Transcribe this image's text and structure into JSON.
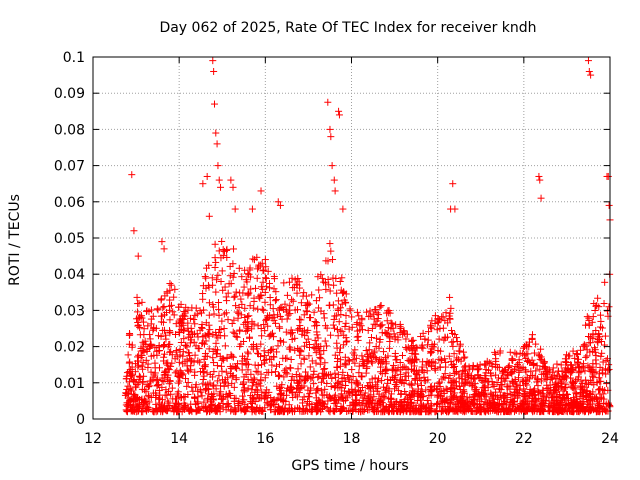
{
  "chart_data": {
    "type": "scatter",
    "title": "Day 062 of 2025, Rate Of TEC Index for receiver kndh",
    "xlabel": "GPS time / hours",
    "ylabel": "ROTI / TECUs",
    "xlim": [
      12,
      24
    ],
    "ylim": [
      0,
      0.1
    ],
    "x_ticks": [
      12,
      14,
      16,
      18,
      20,
      22,
      24
    ],
    "x_tick_labels": [
      "12",
      "14",
      "16",
      "18",
      "20",
      "22",
      "24"
    ],
    "y_ticks": [
      0,
      0.01,
      0.02,
      0.03,
      0.04,
      0.05,
      0.06,
      0.07,
      0.08,
      0.09,
      0.1
    ],
    "y_tick_labels": [
      "0",
      "0.01",
      "0.02",
      "0.03",
      "0.04",
      "0.05",
      "0.06",
      "0.07",
      "0.08",
      "0.09",
      "0.1"
    ],
    "grid": true,
    "marker": "+",
    "marker_color": "#ff0000",
    "series": [
      {
        "name": "ROTI",
        "x_range": [
          12.75,
          24.0
        ],
        "envelope": [
          [
            12.75,
            0.02
          ],
          [
            13.0,
            0.035
          ],
          [
            13.25,
            0.03
          ],
          [
            13.5,
            0.032
          ],
          [
            13.75,
            0.04
          ],
          [
            14.0,
            0.035
          ],
          [
            14.25,
            0.03
          ],
          [
            14.5,
            0.035
          ],
          [
            14.75,
            0.048
          ],
          [
            15.0,
            0.05
          ],
          [
            15.25,
            0.048
          ],
          [
            15.5,
            0.042
          ],
          [
            15.75,
            0.045
          ],
          [
            16.0,
            0.045
          ],
          [
            16.25,
            0.042
          ],
          [
            16.5,
            0.038
          ],
          [
            16.75,
            0.04
          ],
          [
            17.0,
            0.035
          ],
          [
            17.25,
            0.04
          ],
          [
            17.5,
            0.05
          ],
          [
            17.75,
            0.04
          ],
          [
            18.0,
            0.032
          ],
          [
            18.25,
            0.03
          ],
          [
            18.5,
            0.03
          ],
          [
            18.75,
            0.032
          ],
          [
            19.0,
            0.028
          ],
          [
            19.25,
            0.025
          ],
          [
            19.5,
            0.022
          ],
          [
            19.75,
            0.025
          ],
          [
            20.0,
            0.03
          ],
          [
            20.25,
            0.035
          ],
          [
            20.5,
            0.022
          ],
          [
            20.75,
            0.015
          ],
          [
            21.0,
            0.015
          ],
          [
            21.25,
            0.018
          ],
          [
            21.5,
            0.02
          ],
          [
            21.75,
            0.018
          ],
          [
            22.0,
            0.02
          ],
          [
            22.25,
            0.025
          ],
          [
            22.5,
            0.015
          ],
          [
            22.75,
            0.015
          ],
          [
            23.0,
            0.018
          ],
          [
            23.25,
            0.02
          ],
          [
            23.5,
            0.03
          ],
          [
            23.75,
            0.035
          ],
          [
            24.0,
            0.045
          ]
        ],
        "outliers": [
          [
            12.9,
            0.0675
          ],
          [
            12.95,
            0.052
          ],
          [
            13.05,
            0.045
          ],
          [
            13.6,
            0.049
          ],
          [
            13.65,
            0.047
          ],
          [
            14.55,
            0.065
          ],
          [
            14.65,
            0.067
          ],
          [
            14.7,
            0.056
          ],
          [
            14.78,
            0.099
          ],
          [
            14.8,
            0.096
          ],
          [
            14.82,
            0.087
          ],
          [
            14.85,
            0.079
          ],
          [
            14.88,
            0.076
          ],
          [
            14.9,
            0.07
          ],
          [
            14.93,
            0.066
          ],
          [
            14.96,
            0.064
          ],
          [
            15.2,
            0.066
          ],
          [
            15.25,
            0.064
          ],
          [
            15.3,
            0.058
          ],
          [
            15.7,
            0.058
          ],
          [
            15.9,
            0.063
          ],
          [
            16.3,
            0.06
          ],
          [
            16.35,
            0.059
          ],
          [
            17.45,
            0.0875
          ],
          [
            17.5,
            0.08
          ],
          [
            17.52,
            0.078
          ],
          [
            17.55,
            0.07
          ],
          [
            17.6,
            0.066
          ],
          [
            17.62,
            0.063
          ],
          [
            17.7,
            0.085
          ],
          [
            17.72,
            0.084
          ],
          [
            17.8,
            0.058
          ],
          [
            20.3,
            0.058
          ],
          [
            20.35,
            0.065
          ],
          [
            20.4,
            0.058
          ],
          [
            22.35,
            0.067
          ],
          [
            22.37,
            0.066
          ],
          [
            22.4,
            0.061
          ],
          [
            23.5,
            0.099
          ],
          [
            23.52,
            0.096
          ],
          [
            23.55,
            0.095
          ],
          [
            23.93,
            0.067
          ],
          [
            23.96,
            0.067
          ],
          [
            23.98,
            0.059
          ],
          [
            24.0,
            0.055
          ]
        ]
      }
    ]
  }
}
